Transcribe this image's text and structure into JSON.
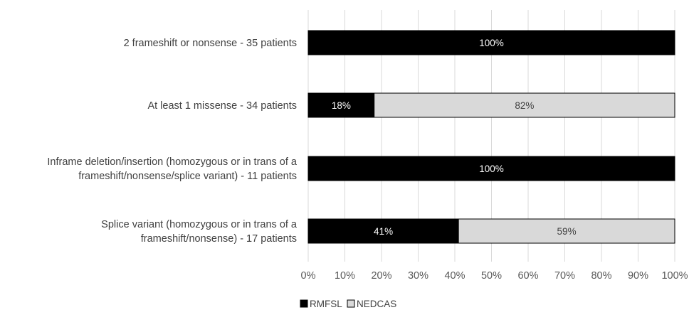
{
  "chart_data": {
    "type": "bar",
    "stacked": true,
    "orientation": "horizontal",
    "categories": [
      [
        "2 frameshift or nonsense - 35 patients"
      ],
      [
        "At least 1 missense - 34 patients"
      ],
      [
        "Inframe deletion/insertion (homozygous or in trans of a",
        "frameshift/nonsense/splice variant) - 11 patients"
      ],
      [
        "Splice variant (homozygous or in trans of a",
        "frameshift/nonsense) - 17 patients"
      ]
    ],
    "series": [
      {
        "name": "RMFSL",
        "values": [
          100,
          18,
          100,
          41
        ],
        "color": "#000000",
        "label_color": "#ffffff"
      },
      {
        "name": "NEDCAS",
        "values": [
          0,
          82,
          0,
          59
        ],
        "color": "#d9d9d9",
        "label_color": "#404040"
      }
    ],
    "xlim": [
      0,
      100
    ],
    "xticks": [
      0,
      10,
      20,
      30,
      40,
      50,
      60,
      70,
      80,
      90,
      100
    ],
    "tick_suffix": "%",
    "grid": "vertical",
    "grid_color": "#d9d9d9",
    "legend_position": "bottom-left",
    "title": "",
    "xlabel": "",
    "ylabel": ""
  }
}
